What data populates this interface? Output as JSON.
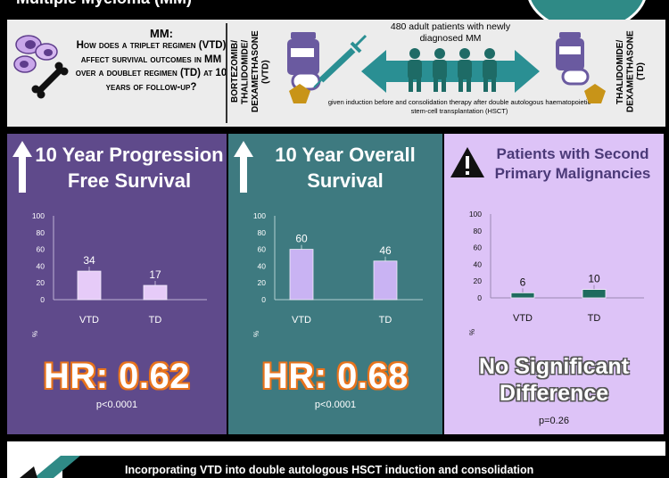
{
  "header": {
    "title": "Multiple Myeloma (MM)"
  },
  "question": {
    "head": "MM:",
    "text": "How does a triplet regimen (VTD) affect survival outcomes in MM over a doublet regimen (TD) at 10 years of follow-up?"
  },
  "regimens": {
    "left_label": "BORTEZOMIB/ THALIDOMIDE/ DEXAMETHASONE (VTD)",
    "right_label": "THALIDOMIDE/ DEXAMETHASONE (TD)"
  },
  "study": {
    "patients": "480 adult patients with newly diagnosed MM",
    "induction": "given induction before and consolidation therapy after double autologous haematopoietic stem-cell transplantation (HSCT)"
  },
  "panels": [
    {
      "title": "10 Year Progression Free Survival",
      "stat": "HR: 0.62",
      "p": "p<0.0001"
    },
    {
      "title": "10 Year Overall Survival",
      "stat": "HR: 0.68",
      "p": "p<0.0001"
    },
    {
      "title": "Patients with Second Primary Malignancies",
      "stat": "No Significant Difference",
      "p": "p=0.26"
    }
  ],
  "chart_data": [
    {
      "type": "bar",
      "title": "10 Year Progression Free Survival",
      "categories": [
        "VTD",
        "TD"
      ],
      "values": [
        34,
        17
      ],
      "ylabel": "%",
      "ylim": [
        0,
        100
      ],
      "yticks": [
        0,
        20,
        40,
        60,
        80,
        100
      ],
      "bar_color": "#e6cbf8",
      "grid": false
    },
    {
      "type": "bar",
      "title": "10 Year Overall Survival",
      "categories": [
        "VTD",
        "TD"
      ],
      "values": [
        60,
        46
      ],
      "ylabel": "%",
      "ylim": [
        0,
        100
      ],
      "yticks": [
        0,
        20,
        40,
        60,
        80,
        100
      ],
      "bar_color": "#c9b3f3",
      "grid": false
    },
    {
      "type": "bar",
      "title": "Patients with Second Primary Malignancies",
      "categories": [
        "VTD",
        "TD"
      ],
      "values": [
        6,
        10
      ],
      "ylabel": "%",
      "ylim": [
        0,
        100
      ],
      "yticks": [
        0,
        20,
        40,
        60,
        80,
        100
      ],
      "bar_color": "#1f6b5f",
      "grid": false
    }
  ],
  "footer": {
    "text": "Incorporating VTD into double autologous HSCT induction and consolidation"
  }
}
